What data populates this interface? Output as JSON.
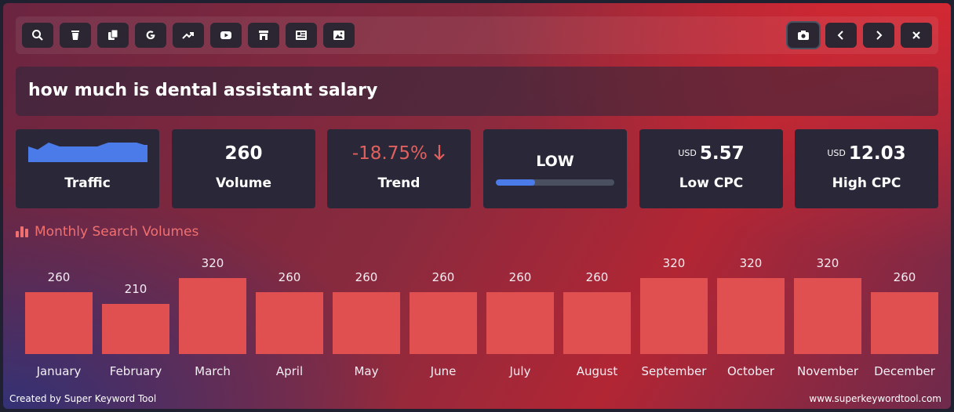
{
  "query": "how much is dental assistant salary",
  "toolbar": {
    "left_icons": [
      "search-icon",
      "trash-icon",
      "copy-icon",
      "google-icon",
      "trending-icon",
      "youtube-icon",
      "store-icon",
      "news-icon",
      "image-icon"
    ],
    "right_icons": [
      "camera-icon",
      "chevron-left-icon",
      "chevron-right-icon",
      "close-icon"
    ]
  },
  "metrics": {
    "volume": {
      "value": "260",
      "label": "Volume"
    },
    "traffic": {
      "label": "Traffic"
    },
    "trend": {
      "value": "-18.75%",
      "label": "Trend"
    },
    "competition": {
      "value": "LOW",
      "level": 0.33
    },
    "low_cpc": {
      "currency": "USD",
      "value": "5.57",
      "label": "Low CPC"
    },
    "high_cpc": {
      "currency": "USD",
      "value": "12.03",
      "label": "High CPC"
    }
  },
  "section_title": "Monthly Search Volumes",
  "chart_data": {
    "type": "bar",
    "categories": [
      "January",
      "February",
      "March",
      "April",
      "May",
      "June",
      "July",
      "August",
      "September",
      "October",
      "November",
      "December"
    ],
    "values": [
      260,
      210,
      320,
      260,
      260,
      260,
      260,
      260,
      320,
      320,
      320,
      260
    ]
  },
  "footer": {
    "left": "Created by Super Keyword Tool",
    "right": "www.superkeywordtool.com"
  },
  "colors": {
    "bar": "#e05050",
    "accent_blue": "#4a7be8",
    "trend_red": "#e0605e"
  }
}
